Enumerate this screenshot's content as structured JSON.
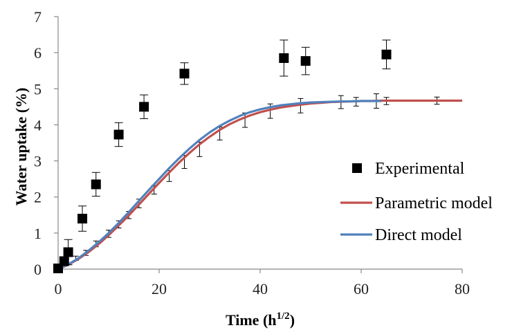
{
  "chart_data": {
    "type": "scatter",
    "xlabel_main": "Time (h",
    "xlabel_sup": "1/2",
    "xlabel_end": ")",
    "ylabel": "Water uptake (%)",
    "xlim": [
      0,
      80
    ],
    "ylim": [
      0,
      7
    ],
    "x_ticks": [
      "0",
      "20",
      "40",
      "60",
      "80"
    ],
    "y_ticks": [
      "0",
      "1",
      "2",
      "3",
      "4",
      "5",
      "6",
      "7"
    ],
    "grid": false,
    "legend_position": "right",
    "series": [
      {
        "name": "Experimental",
        "kind": "markers",
        "color": "#000000",
        "x": [
          0,
          1.2,
          2.0,
          4.8,
          7.5,
          12.0,
          17.0,
          25.0,
          44.7,
          49.0,
          65.0
        ],
        "y": [
          0.02,
          0.22,
          0.47,
          1.4,
          2.35,
          3.73,
          4.5,
          5.42,
          5.85,
          5.77,
          5.95
        ],
        "err": [
          0.03,
          0.08,
          0.35,
          0.35,
          0.33,
          0.33,
          0.33,
          0.3,
          0.5,
          0.38,
          0.4
        ]
      },
      {
        "name": "Parametric model",
        "kind": "line",
        "color": "#c0504d",
        "x": [
          0,
          2,
          4,
          6,
          8,
          10,
          12,
          14,
          16,
          18,
          20,
          22,
          24,
          26,
          28,
          30,
          32,
          34,
          36,
          38,
          40,
          42,
          44,
          46,
          48,
          50,
          52,
          54,
          56,
          58,
          60,
          62,
          64,
          66,
          68,
          70,
          72,
          74,
          76,
          78,
          80
        ],
        "y": [
          0.0,
          0.12,
          0.28,
          0.47,
          0.69,
          0.94,
          1.21,
          1.49,
          1.79,
          2.09,
          2.39,
          2.68,
          2.96,
          3.22,
          3.46,
          3.67,
          3.86,
          4.02,
          4.15,
          4.26,
          4.35,
          4.42,
          4.48,
          4.52,
          4.56,
          4.59,
          4.61,
          4.63,
          4.64,
          4.65,
          4.66,
          4.66,
          4.67,
          4.67,
          4.67,
          4.67,
          4.67,
          4.67,
          4.67,
          4.67,
          4.67
        ]
      },
      {
        "name": "Direct model",
        "kind": "line",
        "color": "#4f81bd",
        "x": [
          0,
          2,
          4,
          6,
          8,
          10,
          12,
          14,
          16,
          18,
          20,
          22,
          24,
          26,
          28,
          30,
          32,
          34,
          36,
          38,
          40,
          42,
          44,
          46,
          48,
          50,
          52,
          54,
          56,
          58,
          60,
          62,
          64
        ],
        "y": [
          0.0,
          0.13,
          0.3,
          0.51,
          0.74,
          1.0,
          1.28,
          1.58,
          1.89,
          2.2,
          2.5,
          2.8,
          3.08,
          3.34,
          3.58,
          3.79,
          3.97,
          4.12,
          4.25,
          4.35,
          4.43,
          4.49,
          4.54,
          4.57,
          4.6,
          4.62,
          4.63,
          4.64,
          4.65,
          4.65,
          4.66,
          4.66,
          4.66
        ]
      },
      {
        "name": "Model error bars",
        "kind": "errorbars",
        "color": "#000000",
        "x": [
          3.5,
          5.5,
          7.5,
          10,
          12,
          14,
          16,
          19,
          22,
          25,
          28,
          32,
          37,
          42,
          48,
          56,
          59,
          63,
          65,
          75
        ],
        "y": [
          0.3,
          0.45,
          0.7,
          0.98,
          1.24,
          1.5,
          1.82,
          2.2,
          2.58,
          2.97,
          3.32,
          3.76,
          4.13,
          4.38,
          4.53,
          4.63,
          4.64,
          4.66,
          4.66,
          4.67
        ],
        "err": [
          0.06,
          0.07,
          0.08,
          0.1,
          0.1,
          0.1,
          0.12,
          0.12,
          0.15,
          0.18,
          0.2,
          0.18,
          0.2,
          0.2,
          0.2,
          0.18,
          0.12,
          0.2,
          0.1,
          0.1
        ]
      }
    ]
  }
}
